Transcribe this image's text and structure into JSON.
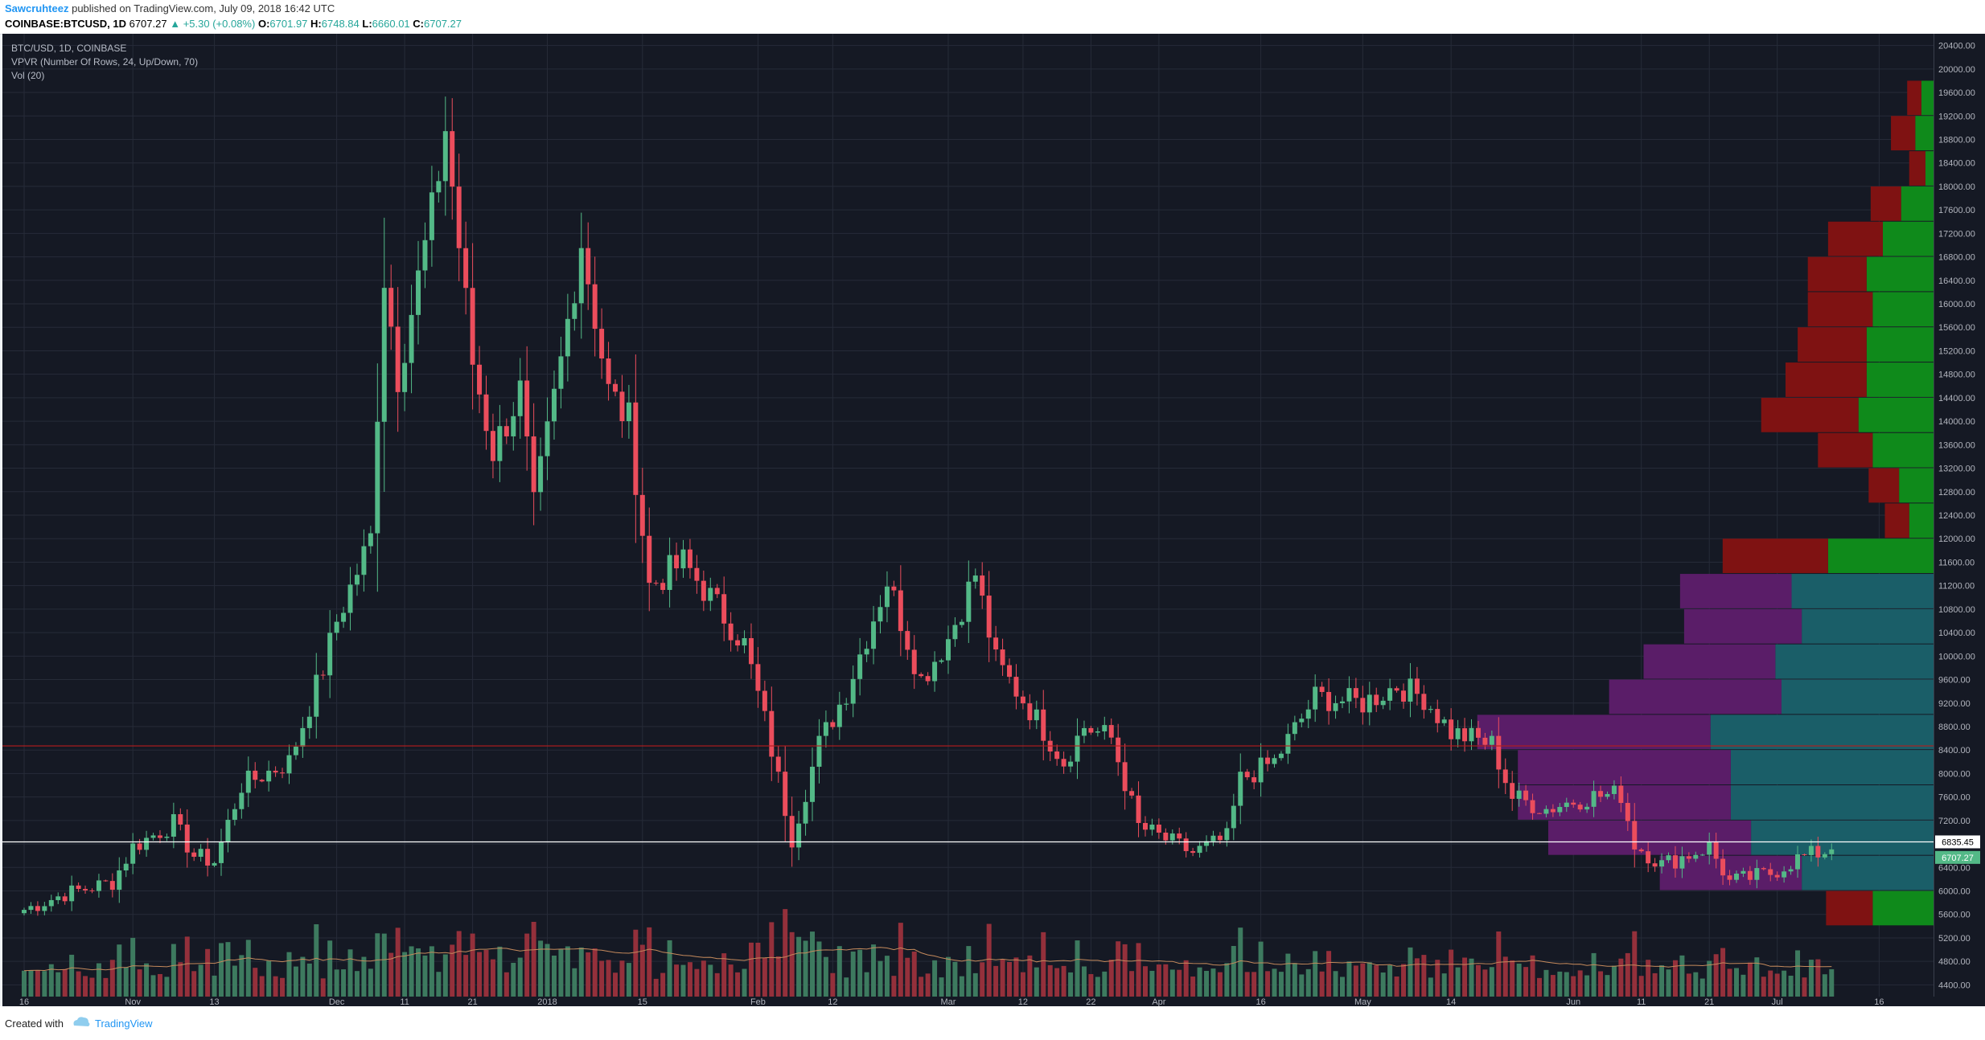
{
  "header": {
    "author": "Sawcruhteez",
    "published": " published on TradingView.com, July 09, 2018 16:42 UTC",
    "symbol": "COINBASE:BTCUSD, 1D",
    "last": "6707.27",
    "change": "▲ +5.30 (+0.08%)",
    "o_label": "O:",
    "o_value": "6701.97",
    "h_label": "H:",
    "h_value": "6748.84",
    "l_label": "L:",
    "l_value": "6660.01",
    "c_label": "C:",
    "c_value": "6707.27"
  },
  "legend": {
    "line1": "BTC/USD, 1D, COINBASE",
    "line2": "VPVR (Number Of Rows, 24, Up/Down, 70)",
    "line3": "Vol (20)"
  },
  "footer": {
    "created": "Created with",
    "brand": "TradingView"
  },
  "colors": {
    "background": "#151924",
    "grid": "#262b38",
    "up": "#53b987",
    "down": "#eb4d5c",
    "vol_up": "#3d7a5f",
    "vol_down": "#94303b",
    "vp_up_value_area": "#1a5e68",
    "vp_down_value_area": "#5a1d68",
    "vp_up": "#0f8a1b",
    "vp_down": "#7f1212",
    "hline_white": "#ffffff",
    "hline_red": "#b71c1c",
    "axis_text": "#b2b5be"
  },
  "chart_data": {
    "type": "candlestick",
    "y_axis": {
      "range": [
        4200,
        20600
      ],
      "ticks": [
        "4400.00",
        "4800.00",
        "5200.00",
        "5600.00",
        "6000.00",
        "6400.00",
        "6800.00",
        "7200.00",
        "7600.00",
        "8000.00",
        "8400.00",
        "8800.00",
        "9200.00",
        "9600.00",
        "10000.00",
        "10400.00",
        "10800.00",
        "11200.00",
        "11600.00",
        "12000.00",
        "12400.00",
        "12800.00",
        "13200.00",
        "13600.00",
        "14000.00",
        "14400.00",
        "14800.00",
        "15200.00",
        "15600.00",
        "16000.00",
        "16400.00",
        "16800.00",
        "17200.00",
        "17600.00",
        "18000.00",
        "18400.00",
        "18800.00",
        "19200.00",
        "19600.00",
        "20000.00",
        "20400.00"
      ]
    },
    "x_axis": {
      "range": [
        "2017-10-16",
        "2018-07-24"
      ],
      "ticks": [
        {
          "label": "16",
          "date": "2017-10-16"
        },
        {
          "label": "Nov",
          "date": "2017-11-01"
        },
        {
          "label": "13",
          "date": "2017-11-13"
        },
        {
          "label": "Dec",
          "date": "2017-12-01"
        },
        {
          "label": "11",
          "date": "2017-12-11"
        },
        {
          "label": "21",
          "date": "2017-12-21"
        },
        {
          "label": "2018",
          "date": "2018-01-01"
        },
        {
          "label": "15",
          "date": "2018-01-15"
        },
        {
          "label": "Feb",
          "date": "2018-02-01"
        },
        {
          "label": "12",
          "date": "2018-02-12"
        },
        {
          "label": "Mar",
          "date": "2018-03-01"
        },
        {
          "label": "12",
          "date": "2018-03-12"
        },
        {
          "label": "22",
          "date": "2018-03-22"
        },
        {
          "label": "Apr",
          "date": "2018-04-01"
        },
        {
          "label": "16",
          "date": "2018-04-16"
        },
        {
          "label": "May",
          "date": "2018-05-01"
        },
        {
          "label": "14",
          "date": "2018-05-14"
        },
        {
          "label": "Jun",
          "date": "2018-06-01"
        },
        {
          "label": "11",
          "date": "2018-06-11"
        },
        {
          "label": "21",
          "date": "2018-06-21"
        },
        {
          "label": "Jul",
          "date": "2018-07-01"
        },
        {
          "label": "16",
          "date": "2018-07-16"
        }
      ]
    },
    "price_path": {
      "start": "2017-10-16",
      "points": [
        [
          "2017-10-16",
          5680
        ],
        [
          "2017-10-22",
          5950
        ],
        [
          "2017-10-29",
          6150
        ],
        [
          "2017-11-01",
          6750
        ],
        [
          "2017-11-07",
          7150
        ],
        [
          "2017-11-10",
          6600
        ],
        [
          "2017-11-13",
          6500
        ],
        [
          "2017-11-17",
          7800
        ],
        [
          "2017-11-24",
          8200
        ],
        [
          "2017-11-29",
          9800
        ],
        [
          "2017-12-01",
          10600
        ],
        [
          "2017-12-06",
          12000
        ],
        [
          "2017-12-08",
          16500
        ],
        [
          "2017-12-10",
          14800
        ],
        [
          "2017-12-15",
          17500
        ],
        [
          "2017-12-17",
          19000
        ],
        [
          "2017-12-21",
          15000
        ],
        [
          "2017-12-24",
          13500
        ],
        [
          "2017-12-28",
          14500
        ],
        [
          "2017-12-30",
          12500
        ],
        [
          "2018-01-03",
          15000
        ],
        [
          "2018-01-06",
          17100
        ],
        [
          "2018-01-10",
          14500
        ],
        [
          "2018-01-13",
          14000
        ],
        [
          "2018-01-16",
          11200
        ],
        [
          "2018-01-21",
          11600
        ],
        [
          "2018-01-25",
          11000
        ],
        [
          "2018-01-30",
          10200
        ],
        [
          "2018-02-02",
          8900
        ],
        [
          "2018-02-06",
          6900
        ],
        [
          "2018-02-10",
          8500
        ],
        [
          "2018-02-14",
          9400
        ],
        [
          "2018-02-20",
          11300
        ],
        [
          "2018-02-25",
          9600
        ],
        [
          "2018-03-01",
          10300
        ],
        [
          "2018-03-05",
          11400
        ],
        [
          "2018-03-08",
          9900
        ],
        [
          "2018-03-13",
          9100
        ],
        [
          "2018-03-18",
          8200
        ],
        [
          "2018-03-21",
          8800
        ],
        [
          "2018-03-25",
          8600
        ],
        [
          "2018-03-29",
          7100
        ],
        [
          "2018-04-06",
          6650
        ],
        [
          "2018-04-11",
          6900
        ],
        [
          "2018-04-13",
          7900
        ],
        [
          "2018-04-18",
          8200
        ],
        [
          "2018-04-24",
          9300
        ],
        [
          "2018-05-01",
          9200
        ],
        [
          "2018-05-06",
          9500
        ],
        [
          "2018-05-10",
          9300
        ],
        [
          "2018-05-14",
          8700
        ],
        [
          "2018-05-20",
          8500
        ],
        [
          "2018-05-23",
          7600
        ],
        [
          "2018-05-28",
          7400
        ],
        [
          "2018-06-03",
          7600
        ],
        [
          "2018-06-08",
          7650
        ],
        [
          "2018-06-10",
          6800
        ],
        [
          "2018-06-14",
          6450
        ],
        [
          "2018-06-21",
          6750
        ],
        [
          "2018-06-24",
          6150
        ],
        [
          "2018-06-30",
          6300
        ],
        [
          "2018-07-04",
          6550
        ],
        [
          "2018-07-09",
          6707
        ]
      ]
    },
    "volume": {
      "unit": "relative",
      "avg_line": "Vol (20)"
    },
    "volume_profile": {
      "rows": 24,
      "bin_size": 600,
      "bins": [
        {
          "low": 5400,
          "up": 0.3,
          "down": 0.23,
          "value_area": false
        },
        {
          "low": 6000,
          "up": 0.65,
          "down": 0.7,
          "value_area": true
        },
        {
          "low": 6600,
          "up": 0.9,
          "down": 1.0,
          "value_area": true
        },
        {
          "low": 7200,
          "up": 1.0,
          "down": 1.05,
          "value_area": true
        },
        {
          "low": 7800,
          "up": 1.0,
          "down": 1.05,
          "value_area": true
        },
        {
          "low": 8400,
          "up": 1.1,
          "down": 1.15,
          "value_area": true
        },
        {
          "low": 9000,
          "up": 0.75,
          "down": 0.85,
          "value_area": true
        },
        {
          "low": 9600,
          "up": 0.78,
          "down": 0.65,
          "value_area": true
        },
        {
          "low": 10200,
          "up": 0.65,
          "down": 0.58,
          "value_area": true
        },
        {
          "low": 10800,
          "up": 0.7,
          "down": 0.55,
          "value_area": true
        },
        {
          "low": 11400,
          "up": 0.52,
          "down": 0.52,
          "value_area": false
        },
        {
          "low": 12000,
          "up": 0.12,
          "down": 0.12,
          "value_area": false
        },
        {
          "low": 12600,
          "up": 0.17,
          "down": 0.15,
          "value_area": false
        },
        {
          "low": 13200,
          "up": 0.3,
          "down": 0.27,
          "value_area": false
        },
        {
          "low": 13800,
          "up": 0.37,
          "down": 0.48,
          "value_area": false
        },
        {
          "low": 14400,
          "up": 0.33,
          "down": 0.4,
          "value_area": false
        },
        {
          "low": 15000,
          "up": 0.33,
          "down": 0.34,
          "value_area": false
        },
        {
          "low": 15600,
          "up": 0.3,
          "down": 0.32,
          "value_area": false
        },
        {
          "low": 16200,
          "up": 0.33,
          "down": 0.29,
          "value_area": false
        },
        {
          "low": 16800,
          "up": 0.25,
          "down": 0.27,
          "value_area": false
        },
        {
          "low": 17400,
          "up": 0.16,
          "down": 0.15,
          "value_area": false
        },
        {
          "low": 18000,
          "up": 0.04,
          "down": 0.08,
          "value_area": false
        },
        {
          "low": 18600,
          "up": 0.09,
          "down": 0.12,
          "value_area": false
        },
        {
          "low": 19200,
          "up": 0.06,
          "down": 0.07,
          "value_area": false
        }
      ]
    },
    "horizontal_lines": [
      {
        "price": 8470,
        "color": "red"
      },
      {
        "price": 6835.45,
        "color": "white",
        "label": "6835.45"
      }
    ],
    "last_price_label": "6707.27",
    "last_price": 6707.27,
    "title": "BTC/USD, 1D, COINBASE"
  }
}
